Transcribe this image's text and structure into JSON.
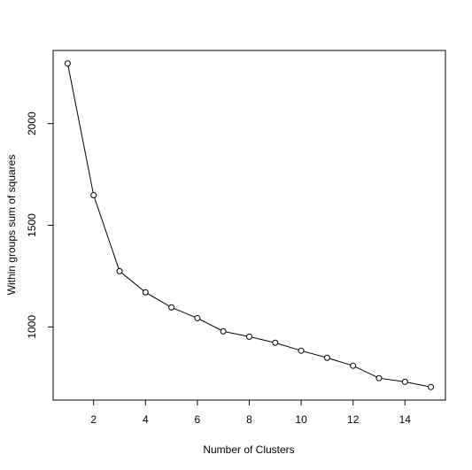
{
  "chart_data": {
    "type": "line",
    "x_label": "Number of Clusters",
    "y_label": "Within groups sum of squares",
    "x": [
      1,
      2,
      3,
      4,
      5,
      6,
      7,
      8,
      9,
      10,
      11,
      12,
      13,
      14,
      15
    ],
    "values": [
      2296,
      1648,
      1274,
      1170,
      1096,
      1043,
      978,
      952,
      922,
      883,
      848,
      809,
      748,
      730,
      704
    ],
    "color": "#000000",
    "xlim": [
      0.44,
      15.56
    ],
    "xticks": [
      2,
      4,
      6,
      8,
      10,
      12,
      14
    ],
    "ylim": [
      640,
      2360
    ],
    "yticks": [
      1000,
      1500,
      2000
    ]
  }
}
